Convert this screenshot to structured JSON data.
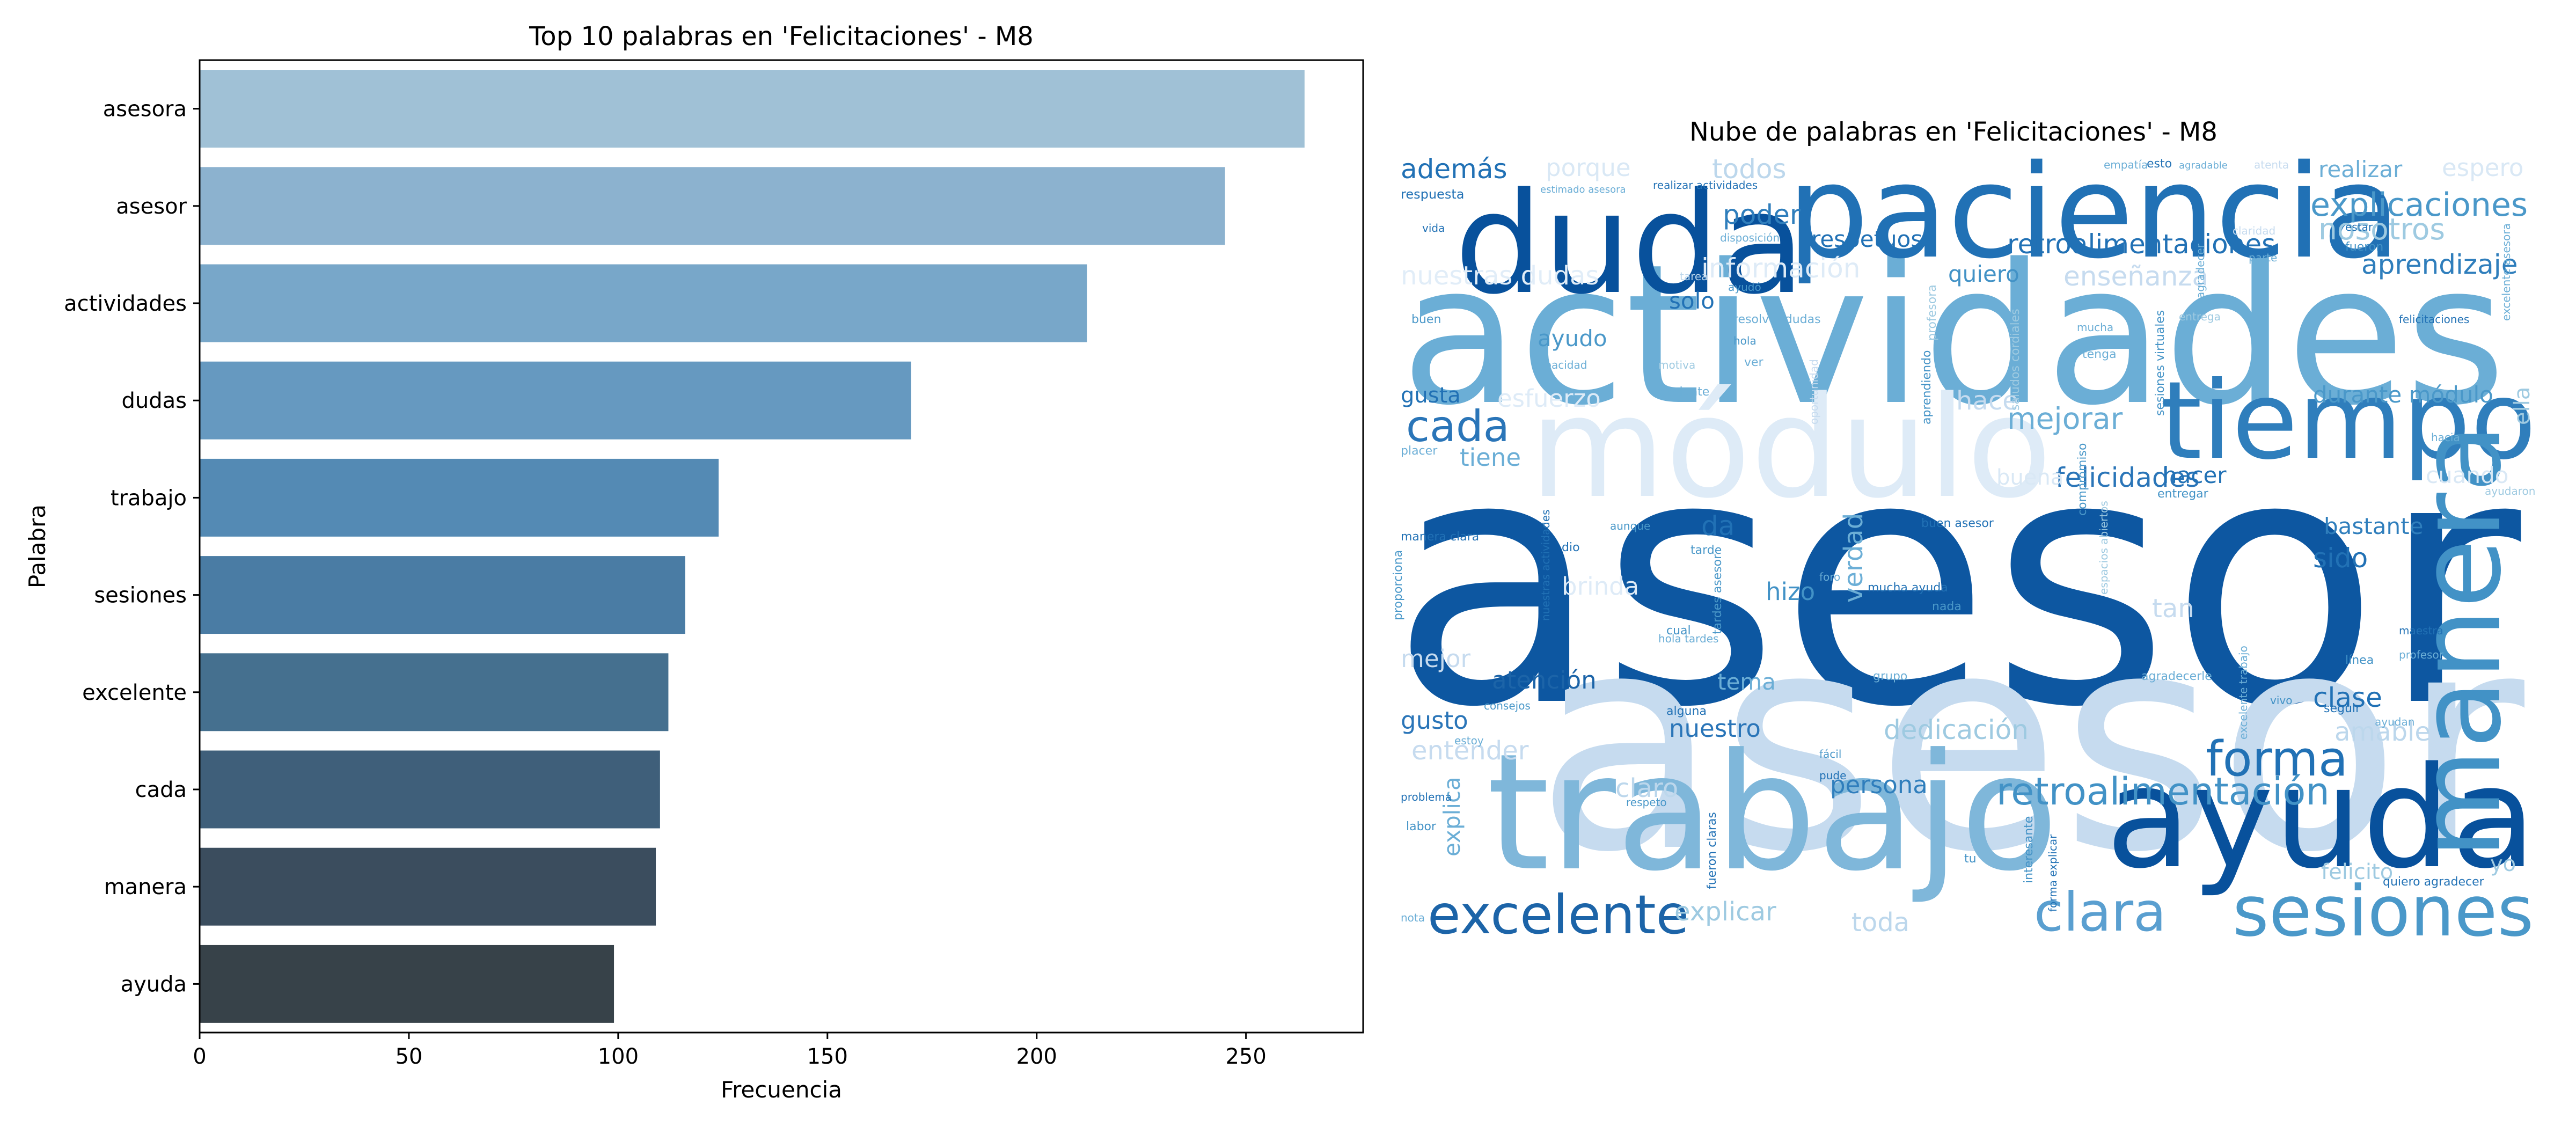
{
  "chart_data": [
    {
      "type": "bar",
      "orientation": "horizontal",
      "title": "Top 10 palabras en 'Felicitaciones' - M8",
      "xlabel": "Frecuencia",
      "ylabel": "Palabra",
      "xlim": [
        0,
        278
      ],
      "xticks": [
        "0",
        "50",
        "100",
        "150",
        "200",
        "250"
      ],
      "categories": [
        "asesora",
        "asesor",
        "actividades",
        "dudas",
        "trabajo",
        "sesiones",
        "excelente",
        "cada",
        "manera",
        "ayuda"
      ],
      "values": [
        264,
        245,
        212,
        170,
        124,
        116,
        112,
        110,
        109,
        99
      ],
      "colors": [
        "#a0c1d6",
        "#8cb2cf",
        "#78a7c9",
        "#6699c0",
        "#548ab4",
        "#4a7ca4",
        "#45708f",
        "#3f5f7a",
        "#3b4d5e",
        "#374249"
      ]
    },
    {
      "type": "wordcloud",
      "title": "Nube de palabras en 'Felicitaciones' - M8",
      "words": [
        {
          "text": "asesora",
          "color": "#0d57a1"
        },
        {
          "text": "asesor",
          "color": "#c6dbef"
        },
        {
          "text": "actividades",
          "color": "#6baed6"
        },
        {
          "text": "módulo",
          "color": "#deebf7"
        },
        {
          "text": "paciencia",
          "color": "#2171b5"
        },
        {
          "text": "duda",
          "color": "#08519c"
        },
        {
          "text": "trabajo",
          "color": "#7fb7da"
        },
        {
          "text": "ayuda",
          "color": "#08519c"
        },
        {
          "text": "tiempo",
          "color": "#2f7ebc"
        },
        {
          "text": "manera",
          "color": "#4292c6"
        },
        {
          "text": "sesiones",
          "color": "#4a98c9"
        },
        {
          "text": "excelente",
          "color": "#1c64a8"
        },
        {
          "text": "clara",
          "color": "#5a9fd0"
        },
        {
          "text": "forma",
          "color": "#2171b5"
        },
        {
          "text": "retroalimentación",
          "color": "#4292c6"
        },
        {
          "text": "cada",
          "color": "#2a75b8"
        },
        {
          "text": "explicaciones",
          "color": "#4a98c9"
        },
        {
          "text": "retroalimentaciones",
          "color": "#2171b5"
        },
        {
          "text": "aprendizaje",
          "color": "#2f7ebc"
        },
        {
          "text": "nosotros",
          "color": "#9ecae1"
        },
        {
          "text": "mejorar",
          "color": "#6baed6"
        },
        {
          "text": "felicidades",
          "color": "#2a75b8"
        },
        {
          "text": "durante módulo",
          "color": "#4a98c9"
        },
        {
          "text": "además",
          "color": "#2171b5"
        },
        {
          "text": "porque",
          "color": "#d9e8f5"
        },
        {
          "text": "todos",
          "color": "#bcd7ec"
        },
        {
          "text": "realizar",
          "color": "#6baed6"
        },
        {
          "text": "espero",
          "color": "#d9e8f5"
        },
        {
          "text": "poder",
          "color": "#2f7ebc"
        },
        {
          "text": "respetuosa",
          "color": "#2171b5"
        },
        {
          "text": "información",
          "color": "#deebf7"
        },
        {
          "text": "enseñanza",
          "color": "#c6dbef"
        },
        {
          "text": "nuestras dudas",
          "color": "#e1edf8"
        },
        {
          "text": "quiero",
          "color": "#4292c6"
        },
        {
          "text": "solo",
          "color": "#2171b5"
        },
        {
          "text": "ayudo",
          "color": "#4a98c9"
        },
        {
          "text": "esfuerzo",
          "color": "#deebf7"
        },
        {
          "text": "gusta",
          "color": "#2171b5"
        },
        {
          "text": "tiene",
          "color": "#6baed6"
        },
        {
          "text": "hacer",
          "color": "#2171b5"
        },
        {
          "text": "hace",
          "color": "#c6dbef"
        },
        {
          "text": "buena",
          "color": "#d9e8f5"
        },
        {
          "text": "bastante",
          "color": "#2f7ebc"
        },
        {
          "text": "sido",
          "color": "#2171b5"
        },
        {
          "text": "verdad",
          "color": "#6baed6"
        },
        {
          "text": "hizo",
          "color": "#4292c6"
        },
        {
          "text": "da",
          "color": "#2171b5"
        },
        {
          "text": "brinda",
          "color": "#deebf7"
        },
        {
          "text": "mejor",
          "color": "#c6dbef"
        },
        {
          "text": "atención",
          "color": "#1c64a8"
        },
        {
          "text": "tema",
          "color": "#6baed6"
        },
        {
          "text": "clase",
          "color": "#2171b5"
        },
        {
          "text": "amable",
          "color": "#bcd7ec"
        },
        {
          "text": "gusto",
          "color": "#2a75b8"
        },
        {
          "text": "nuestro",
          "color": "#2a75b8"
        },
        {
          "text": "dedicación",
          "color": "#9ecae1"
        },
        {
          "text": "entender",
          "color": "#c6dbef"
        },
        {
          "text": "claro",
          "color": "#bcd7ec"
        },
        {
          "text": "persona",
          "color": "#2f7ebc"
        },
        {
          "text": "explica",
          "color": "#6baed6"
        },
        {
          "text": "explicar",
          "color": "#9ecae1"
        },
        {
          "text": "toda",
          "color": "#bcd7ec"
        },
        {
          "text": "felicito",
          "color": "#9ecae1"
        },
        {
          "text": "cuando",
          "color": "#d9e8f5"
        },
        {
          "text": "ella",
          "color": "#9ecae1"
        },
        {
          "text": "saludos cordiales",
          "color": "#9ecae1"
        },
        {
          "text": "sesiones virtuales",
          "color": "#4292c6"
        },
        {
          "text": "profesora",
          "color": "#9ecae1"
        },
        {
          "text": "respuesta",
          "color": "#2171b5"
        },
        {
          "text": "empatía",
          "color": "#6baed6"
        },
        {
          "text": "atenta",
          "color": "#c6dbef"
        },
        {
          "text": "realizar actividades",
          "color": "#2171b5"
        },
        {
          "text": "disposición",
          "color": "#6baed6"
        },
        {
          "text": "claridad",
          "color": "#c6dbef"
        },
        {
          "text": "parte",
          "color": "#6baed6"
        },
        {
          "text": "fueron",
          "color": "#4292c6"
        },
        {
          "text": "agradecer",
          "color": "#6baed6"
        },
        {
          "text": "resolver dudas",
          "color": "#6baed6"
        },
        {
          "text": "mucha",
          "color": "#6baed6"
        },
        {
          "text": "tarea",
          "color": "#bcd7ec"
        },
        {
          "text": "hola",
          "color": "#4a98c9"
        },
        {
          "text": "ver",
          "color": "#6baed6"
        },
        {
          "text": "motiva",
          "color": "#9ecae1"
        },
        {
          "text": "tenga",
          "color": "#6baed6"
        },
        {
          "text": "entrega",
          "color": "#9ecae1"
        },
        {
          "text": "paciente",
          "color": "#6baed6"
        },
        {
          "text": "capacidad",
          "color": "#6baed6"
        },
        {
          "text": "buen",
          "color": "#4a98c9"
        },
        {
          "text": "placer",
          "color": "#6baed6"
        },
        {
          "text": "aprendiendo",
          "color": "#4292c6"
        },
        {
          "text": "oportunidad",
          "color": "#c6dbef"
        },
        {
          "text": "entregar",
          "color": "#4292c6"
        },
        {
          "text": "compromiso",
          "color": "#4a98c9"
        },
        {
          "text": "buen asesor",
          "color": "#2171b5"
        },
        {
          "text": "aunque",
          "color": "#4a98c9"
        },
        {
          "text": "manera clara",
          "color": "#2171b5"
        },
        {
          "text": "proporciona",
          "color": "#4a98c9"
        },
        {
          "text": "nuestras actividades",
          "color": "#2171b5"
        },
        {
          "text": "tardes asesor",
          "color": "#4a98c9"
        },
        {
          "text": "espacios abiertos",
          "color": "#9ecae1"
        },
        {
          "text": "mucha ayuda",
          "color": "#2171b5"
        },
        {
          "text": "foro",
          "color": "#6baed6"
        },
        {
          "text": "nada",
          "color": "#4a98c9"
        },
        {
          "text": "tan",
          "color": "#c6dbef"
        },
        {
          "text": "maestra",
          "color": "#2171b5"
        },
        {
          "text": "profesor",
          "color": "#6baed6"
        },
        {
          "text": "línea",
          "color": "#4292c6"
        },
        {
          "text": "agradecerle",
          "color": "#6baed6"
        },
        {
          "text": "excelente trabajo",
          "color": "#6baed6"
        },
        {
          "text": "grupo",
          "color": "#6baed6"
        },
        {
          "text": "cual",
          "color": "#4292c6"
        },
        {
          "text": "alguna",
          "color": "#2171b5"
        },
        {
          "text": "consejos",
          "color": "#4a98c9"
        },
        {
          "text": "estoy",
          "color": "#6baed6"
        },
        {
          "text": "seguir",
          "color": "#2171b5"
        },
        {
          "text": "vivo",
          "color": "#4292c6"
        },
        {
          "text": "ayudan",
          "color": "#6baed6"
        },
        {
          "text": "fácil",
          "color": "#4a98c9"
        },
        {
          "text": "pude",
          "color": "#2171b5"
        },
        {
          "text": "respeto",
          "color": "#4a98c9"
        },
        {
          "text": "fueron claras",
          "color": "#2171b5"
        },
        {
          "text": "problema",
          "color": "#2171b5"
        },
        {
          "text": "labor",
          "color": "#4292c6"
        },
        {
          "text": "interesante",
          "color": "#4292c6"
        },
        {
          "text": "forma explicar",
          "color": "#2171b5"
        },
        {
          "text": "quiero agradecer",
          "color": "#2171b5"
        },
        {
          "text": "nota",
          "color": "#6baed6"
        },
        {
          "text": "tu",
          "color": "#4292c6"
        },
        {
          "text": "yo",
          "color": "#9ecae1"
        },
        {
          "text": "ayudaron",
          "color": "#9ecae1"
        },
        {
          "text": "esto",
          "color": "#2171b5"
        },
        {
          "text": "agradable",
          "color": "#6baed6"
        },
        {
          "text": "estar",
          "color": "#2171b5"
        },
        {
          "text": "hacia",
          "color": "#6baed6"
        },
        {
          "text": "dio",
          "color": "#2171b5"
        },
        {
          "text": "tarde",
          "color": "#4a98c9"
        },
        {
          "text": "vida",
          "color": "#2171b5"
        },
        {
          "text": "estimado asesora",
          "color": "#6baed6"
        },
        {
          "text": "ayudó",
          "color": "#4a98c9"
        },
        {
          "text": "hola tardes",
          "color": "#6baed6"
        },
        {
          "text": "excelente asesora",
          "color": "#6baed6"
        },
        {
          "text": "felicitaciones",
          "color": "#2171b5"
        }
      ]
    }
  ]
}
